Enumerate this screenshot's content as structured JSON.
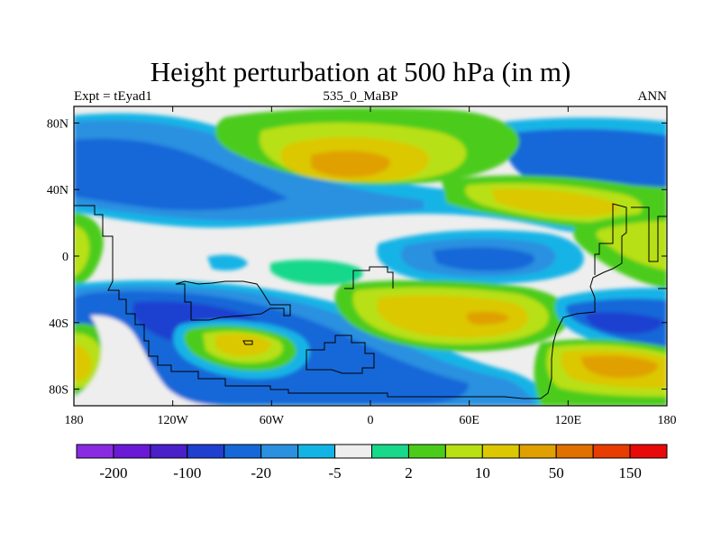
{
  "title": "Height perturbation at 500 hPa (in m)",
  "subtitle_left": "Expt = tEyad1",
  "subtitle_center": "535_0_MaBP",
  "subtitle_right": "ANN",
  "map": {
    "lon_range": [
      -180,
      180
    ],
    "lat_range": [
      -90,
      90
    ],
    "x_ticks": [
      {
        "value": -180,
        "label": "180"
      },
      {
        "value": -120,
        "label": "120W"
      },
      {
        "value": -60,
        "label": "60W"
      },
      {
        "value": 0,
        "label": "0"
      },
      {
        "value": 60,
        "label": "60E"
      },
      {
        "value": 120,
        "label": "120E"
      },
      {
        "value": 180,
        "label": "180"
      }
    ],
    "y_ticks": [
      {
        "value": 80,
        "label": "80N"
      },
      {
        "value": 40,
        "label": "40N"
      },
      {
        "value": 0,
        "label": "0"
      },
      {
        "value": -40,
        "label": "40S"
      },
      {
        "value": -80,
        "label": "80S"
      }
    ]
  },
  "colorbar": {
    "colors": [
      "#8a2be2",
      "#6a1ad6",
      "#4a20c8",
      "#1f3fd0",
      "#1668d8",
      "#2a90e0",
      "#12b4e6",
      "#eeeeee",
      "#18d88a",
      "#4ccc1a",
      "#b8e012",
      "#dcc800",
      "#e0a000",
      "#e07000",
      "#e83c00",
      "#e80a0a"
    ],
    "labels": [
      {
        "after_box": 1,
        "text": "-200"
      },
      {
        "after_box": 3,
        "text": "-100"
      },
      {
        "after_box": 5,
        "text": "-20"
      },
      {
        "after_box": 7,
        "text": "-5"
      },
      {
        "after_box": 9,
        "text": "2"
      },
      {
        "after_box": 11,
        "text": "10"
      },
      {
        "after_box": 13,
        "text": "50"
      },
      {
        "after_box": 15,
        "text": "150"
      }
    ]
  }
}
